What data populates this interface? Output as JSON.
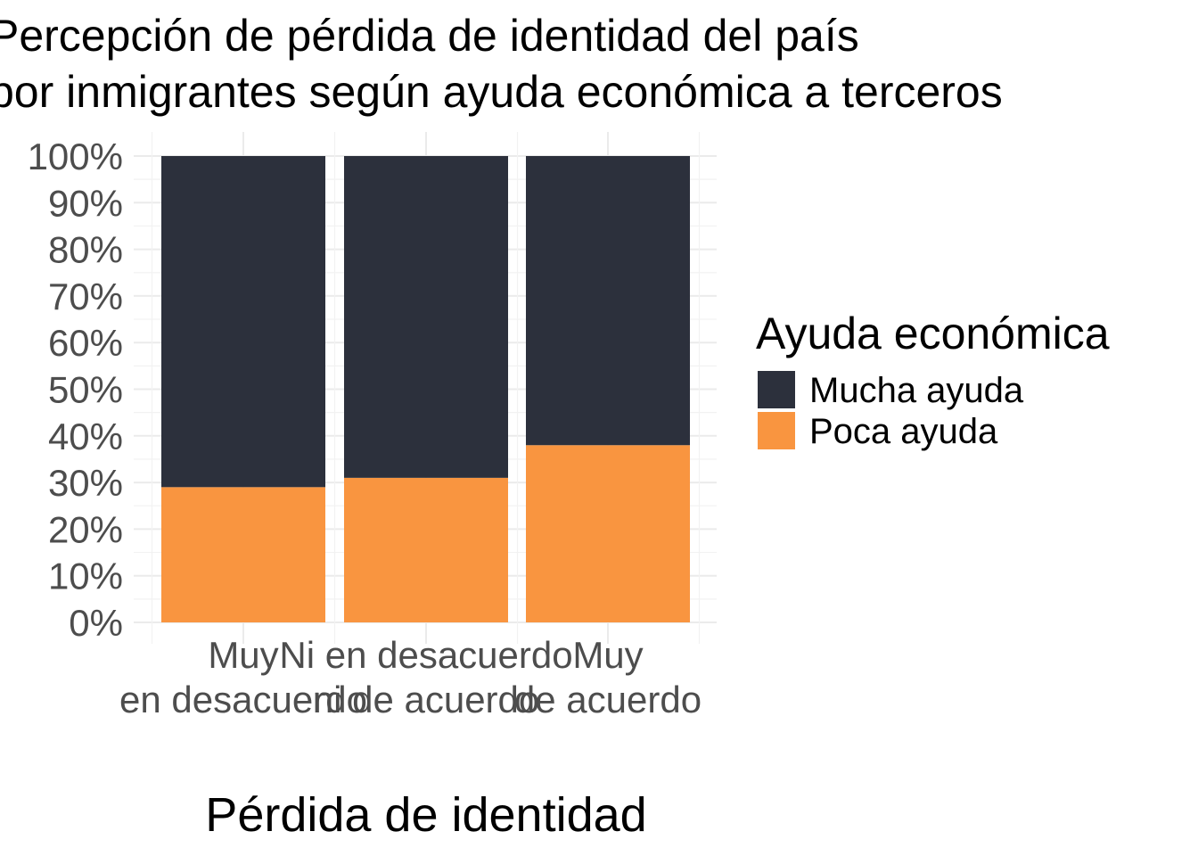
{
  "chart_data": {
    "type": "bar",
    "stacked": true,
    "title_lines": [
      "Percepción de pérdida de identidad del país",
      "por inmigrantes según ayuda económica a terceros"
    ],
    "xlabel": "Pérdida de identidad",
    "ylabel": "",
    "categories": [
      [
        "Muy",
        "en desacuerdo"
      ],
      [
        "Ni en desacuerdo",
        "ni de acuerdo"
      ],
      [
        "Muy",
        "de acuerdo"
      ]
    ],
    "series": [
      {
        "name": "Poca ayuda",
        "color": "#f99540",
        "values": [
          0.29,
          0.31,
          0.38
        ]
      },
      {
        "name": "Mucha ayuda",
        "color": "#2c303c",
        "values": [
          0.71,
          0.69,
          0.62
        ]
      }
    ],
    "ylim": [
      0,
      1
    ],
    "yticks": [
      "0%",
      "10%",
      "20%",
      "30%",
      "40%",
      "50%",
      "60%",
      "70%",
      "80%",
      "90%",
      "100%"
    ],
    "grid": true,
    "legend": {
      "title": "Ayuda económica",
      "position": "right",
      "entries": [
        {
          "label": "Mucha ayuda",
          "color": "#2c303c"
        },
        {
          "label": "Poca ayuda",
          "color": "#f99540"
        }
      ]
    }
  }
}
